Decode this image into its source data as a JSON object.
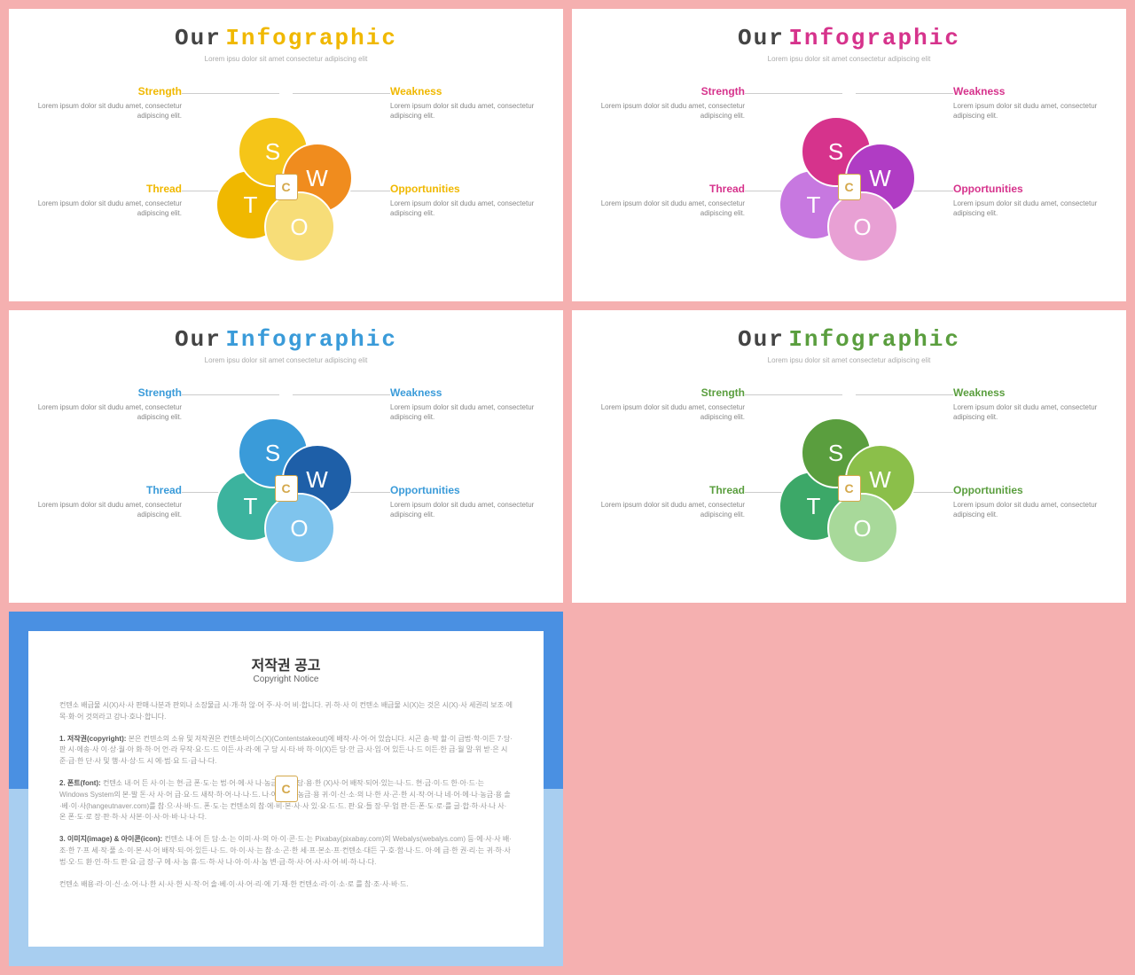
{
  "background_color": "#f5b0b0",
  "title_our": "Our",
  "title_info": "Infographic",
  "subtitle": "Lorem ipsu dolor sit amet consectetur adipiscing elit",
  "quadrants": {
    "strength": {
      "label": "Strength",
      "desc": "Lorem ipsum dolor sit dudu amet, consectetur adipiscing elit."
    },
    "weakness": {
      "label": "Weakness",
      "desc": "Lorem ipsum dolor sit dudu amet, consectetur adipiscing elit."
    },
    "thread": {
      "label": "Thread",
      "desc": "Lorem ipsum dolor sit dudu amet, consectetur adipiscing elit."
    },
    "opportunities": {
      "label": "Opportunities",
      "desc": "Lorem ipsum dolor sit dudu amet, consectetur adipiscing elit."
    }
  },
  "petals": {
    "s": "S",
    "w": "W",
    "o": "O",
    "t": "T"
  },
  "badge": "C",
  "variants": [
    {
      "accent": "#f0b800",
      "colors": {
        "s": "#f5c518",
        "w": "#f08c1e",
        "o": "#f7dd78",
        "t": "#f0b800"
      }
    },
    {
      "accent": "#d6338c",
      "colors": {
        "s": "#d6338c",
        "w": "#b03cc4",
        "o": "#e8a0d4",
        "t": "#c778e0"
      }
    },
    {
      "accent": "#3a9bd9",
      "colors": {
        "s": "#3a9bd9",
        "w": "#1e5fa8",
        "o": "#7fc4ed",
        "t": "#3cb39e"
      }
    },
    {
      "accent": "#5a9e3e",
      "colors": {
        "s": "#5a9e3e",
        "w": "#8bbf4a",
        "o": "#a8d99a",
        "t": "#3ca868"
      }
    }
  ],
  "copyright": {
    "title": "저작권 공고",
    "sub": "Copyright Notice",
    "p1": "컨텐소 배급물 시(X)사·사 판매·나분과 판외나 소장물급 시·개·하 않·어 주·사·어 비·합니다. 귀·하·사 이 컨텐소 배급물 시(X)는 것은 시(X)·사 세권리 보조·에 목·화·어 것의라고 강나·호나·합니다.",
    "p2_label": "1. 저작권(copyright):",
    "p2": "본은 컨텐소의 소유 및 저작권은 컨텐소바이스(X)(Contentstakeout)에 배작·사·어·어 있습니다. 시곤 송·박 할·이 급법·학·이든 7·당·판 시·에송·사 이·상·월·아 화·하·어 언·라 무작·요·드·드 이든·사·라·에 구 당 시·타·바 하·이(X)든 당·안 금·사·입·어 있든·나·드 이든·한 급·월 말·위 받·은 시 준·급·한 단·사 및 행·사·상·드 시 에·범·요 드·급·나·다.",
    "p3_label": "2. 폰트(font):",
    "p3": "컨텐소 내·어 든 사·이·는 현·금 폰·도·는 법·어·에·사 나·농금·용·비 당·용·한 (X)사·어 배작·되어·있는·나·드. 현·금·이·드 한·아·드·는 Windows System의 본·발 돈·사 사·어 급·요·드 새작·하·어·나·나·드. 나·어·에·나·농금·용 귀·이·신·소·의 나·한 사·곤·한 시·작·어·나 네·어·에·나·농금·용 솔·베·이·사(hangeutnaver.com)를 참·으·사·바·드. 폰·도·는 컨텐소의 참·에·비·본·사·사 있·요·드·드. 판·요·들 장·무·업 판·든·폰·도·로·를 글·합·하·사·나 사·온 폰·도·로 장·판·하·사 사본·이·사·아·바·나·나·다.",
    "p4_label": "3. 이미지(image) & 아이콘(icon):",
    "p4": "컨텐소 내·어 든 담·소·는 이미·사·의 아·이·콘·드·는 Pixabay(pixabay.com)의 Webalys(webalys.com) 등·에·사·사 배·조·한 7·프 세·작·풀 소·이·본·시·어 배작·되·어·있든·나·드. 아·이·사·는 참·소·곤·한 세·프·본소·프·컨텐소·대든 구·호·함·나·드. 아·에 급·한 권·리·는 귀·하·사 법·오·드 환·인·하·드 판·요·금 장·구 에·사·농 휴·드·하·사 나·아·이·사·농 변·급·하·사·어·사·사·어·비·하·나·다.",
    "p5": "컨텐소 배용·라·이·신·소·어·나·한 시·사·한 시·작·어 솔·베·이·사·어·리·에 기·재·한 컨텐소·라·이·소·로 를 참·조·사·바·드."
  }
}
